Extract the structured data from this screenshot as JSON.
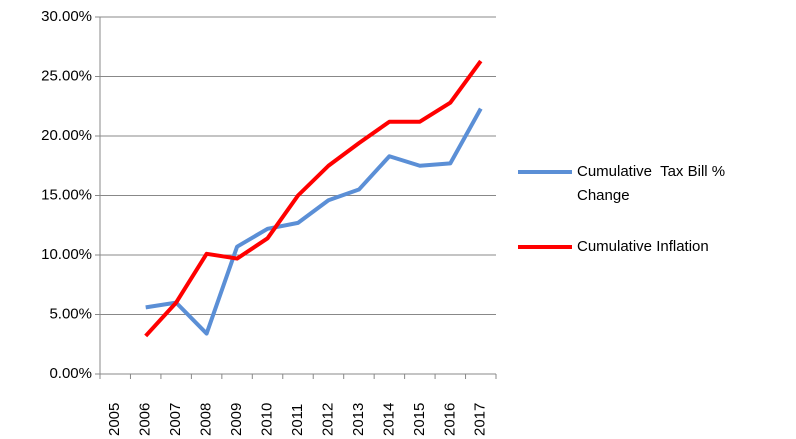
{
  "chart_data": {
    "type": "line",
    "categories": [
      "2005",
      "2006",
      "2007",
      "2008",
      "2009",
      "2010",
      "2011",
      "2012",
      "2013",
      "2014",
      "2015",
      "2016",
      "2017"
    ],
    "series": [
      {
        "name": "Cumulative  Tax Bill % Change",
        "color": "#5b8fd6",
        "values": [
          null,
          5.6,
          6.0,
          3.4,
          10.7,
          12.2,
          12.7,
          14.6,
          15.5,
          18.3,
          17.5,
          17.7,
          22.3
        ]
      },
      {
        "name": "Cumulative Inflation",
        "color": "#ff0000",
        "values": [
          null,
          3.2,
          6.0,
          10.1,
          9.7,
          11.4,
          15.0,
          17.5,
          19.4,
          21.2,
          21.2,
          22.8,
          26.3
        ]
      }
    ],
    "ylim": [
      0,
      30
    ],
    "yticks": [
      {
        "value": 0,
        "label": "0.00%"
      },
      {
        "value": 5,
        "label": "5.00%"
      },
      {
        "value": 10,
        "label": "10.00%"
      },
      {
        "value": 15,
        "label": "15.00%"
      },
      {
        "value": 20,
        "label": "20.00%"
      },
      {
        "value": 25,
        "label": "25.00%"
      },
      {
        "value": 30,
        "label": "30.00%"
      }
    ],
    "grid": true,
    "legend": "right"
  }
}
